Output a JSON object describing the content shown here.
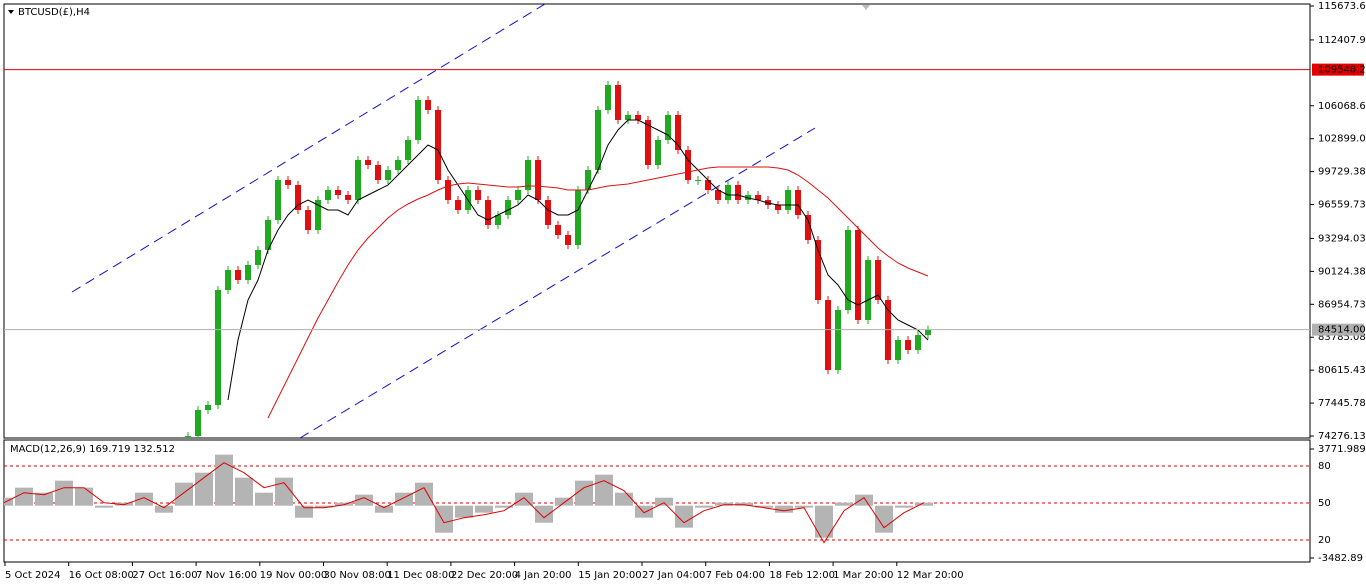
{
  "chart_data": [
    {
      "type": "candlestick",
      "title": "BTCUSD(£),H4",
      "values": [
        74277,
        76780,
        77262,
        88333,
        90258,
        89295,
        90739,
        92183,
        95072,
        98922,
        98441,
        96034,
        94109,
        96997,
        97960,
        97478,
        96997,
        100848,
        100366,
        98922,
        99885,
        100848,
        102773,
        106624,
        105661,
        98922,
        96997,
        96034,
        97960,
        96997,
        94590,
        95553,
        96997,
        97960,
        100848,
        96997,
        94590,
        93628,
        92665,
        97960,
        99885,
        105661,
        108068,
        104699,
        105180,
        104699,
        100366,
        102773,
        105180,
        101810,
        98922,
        98922,
        97960,
        96997,
        98441,
        96997,
        97478,
        96997,
        96516,
        96034,
        97960,
        95553,
        93146,
        87370,
        80631,
        86407,
        94109,
        85445,
        91221,
        87370,
        81594,
        83519,
        82556,
        84001,
        84514
      ],
      "up_color": "#1faa1f",
      "down_color": "#e01010",
      "ma_lines": [
        {
          "color": "#000000",
          "values": [
            null,
            null,
            null,
            null,
            77743,
            83519,
            87370,
            89295,
            92183,
            94109,
            95553,
            96516,
            96997,
            96516,
            96034,
            96034,
            95553,
            96997,
            97478,
            97960,
            98441,
            99404,
            100366,
            101329,
            102292,
            101810,
            99885,
            98441,
            96997,
            95553,
            95072,
            95553,
            96034,
            96516,
            97478,
            96997,
            96034,
            95553,
            95553,
            96034,
            97960,
            99885,
            102292,
            103736,
            104699,
            104699,
            104217,
            103736,
            103255,
            102292,
            100848,
            99885,
            98922,
            97960,
            97478,
            97478,
            97190,
            96997,
            96708,
            96516,
            96516,
            96516,
            95072,
            92183,
            89777,
            88814,
            87370,
            86889,
            87370,
            87851,
            86407,
            85445,
            84963,
            84482,
            83519
          ]
        },
        {
          "color": "#dd1111",
          "values": [
            null,
            null,
            null,
            null,
            null,
            null,
            null,
            null,
            76010,
            77936,
            79861,
            81786,
            83712,
            85637,
            87370,
            89103,
            90739,
            92183,
            93339,
            94301,
            95264,
            96034,
            96612,
            97093,
            97478,
            97960,
            98345,
            98537,
            98634,
            98537,
            98441,
            98345,
            98249,
            98249,
            98345,
            98345,
            98249,
            98152,
            97960,
            97960,
            97960,
            98152,
            98345,
            98441,
            98537,
            98730,
            98922,
            99115,
            99307,
            99500,
            99693,
            99885,
            100078,
            100174,
            100174,
            100174,
            100174,
            100174,
            100174,
            100078,
            99885,
            99404,
            98730,
            97960,
            97190,
            96227,
            95264,
            94301,
            93339,
            92376,
            91606,
            90932,
            90451,
            90066,
            89680
          ]
        }
      ],
      "hlines": [
        {
          "value": 109548.26,
          "color": "#e00000"
        },
        {
          "value": 84514,
          "label": "84514.00",
          "color": "#b0b0b0"
        }
      ],
      "ylim": [
        74276.13,
        115673.68
      ],
      "yticks": [
        115673.68,
        112407.98,
        106068.68,
        102899.03,
        99729.38,
        96559.73,
        93294.03,
        90124.38,
        86954.73,
        83785.08,
        80615.43,
        77445.78,
        74276.13
      ]
    },
    {
      "type": "macd",
      "title": "MACD(12,26,9) 169.719 132.512",
      "values": [
        532,
        1198,
        865,
        1664,
        1198,
        -133,
        200,
        865,
        -466,
        1531,
        2196,
        3395,
        1864,
        865,
        1864,
        -799,
        -133,
        200,
        732,
        -466,
        865,
        1531,
        -1797,
        -799,
        -466,
        -133,
        865,
        -1132,
        532,
        1664,
        2063,
        865,
        -799,
        532,
        -1464,
        -133,
        200,
        200,
        -133,
        -466,
        -133,
        -2130,
        200,
        732,
        -1797,
        -133,
        200
      ],
      "color": "#b4b4b4",
      "signal": {
        "color": "#e00000",
        "values": [
          200,
          865,
          732,
          1198,
          1198,
          200,
          67,
          532,
          -133,
          865,
          1864,
          2862,
          2196,
          1198,
          1531,
          -133,
          -133,
          67,
          532,
          -133,
          532,
          1198,
          -1132,
          -799,
          -599,
          -333,
          532,
          -799,
          200,
          1198,
          1664,
          998,
          -466,
          200,
          -1132,
          -333,
          67,
          67,
          -133,
          -333,
          -133,
          -2463,
          -333,
          532,
          -1464,
          -466,
          200
        ]
      },
      "levels": [
        {
          "value": 2640,
          "label": "80"
        },
        {
          "value": 180,
          "label": "50"
        },
        {
          "value": -2285,
          "label": "20"
        }
      ],
      "ylim": [
        -3482.89,
        3771.989
      ],
      "yticks": [
        3771.989,
        -3482.89
      ]
    }
  ],
  "time_axis": [
    "5 Oct 2024",
    "16 Oct 08:00",
    "27 Oct 16:00",
    "7 Nov 16:00",
    "19 Nov 00:00",
    "30 Nov 08:00",
    "11 Dec 08:00",
    "22 Dec 20:00",
    "4 Jan 20:00",
    "15 Jan 20:00",
    "27 Jan 04:00",
    "7 Feb 04:00",
    "18 Feb 12:00",
    "1 Mar 20:00",
    "12 Mar 20:00"
  ]
}
